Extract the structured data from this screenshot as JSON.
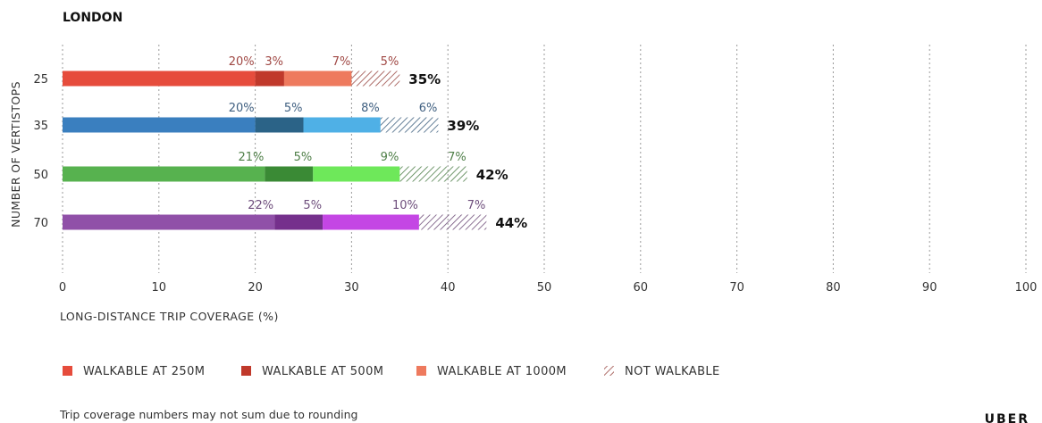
{
  "chart_data": {
    "type": "bar",
    "stacked": true,
    "orientation": "horizontal",
    "title": "LONDON",
    "xlabel": "LONG-DISTANCE TRIP COVERAGE (%)",
    "ylabel": "NUMBER OF VERTISTOPS",
    "xlim": [
      0,
      100
    ],
    "x_ticks": [
      "0",
      "10",
      "20",
      "30",
      "40",
      "50",
      "60",
      "70",
      "80",
      "90",
      "100"
    ],
    "grid": "vertical dotted",
    "categories": [
      "25",
      "35",
      "50",
      "70"
    ],
    "series": [
      {
        "name": "WALKABLE AT 250M",
        "values": [
          20,
          20,
          21,
          22
        ],
        "labels": [
          "20%",
          "20%",
          "21%",
          "22%"
        ]
      },
      {
        "name": "WALKABLE AT 500M",
        "values": [
          3,
          5,
          5,
          5
        ],
        "labels": [
          "3%",
          "5%",
          "5%",
          "5%"
        ]
      },
      {
        "name": "WALKABLE AT 1000M",
        "values": [
          7,
          8,
          9,
          10
        ],
        "labels": [
          "7%",
          "8%",
          "9%",
          "10%"
        ]
      },
      {
        "name": "NOT WALKABLE",
        "values": [
          5,
          6,
          7,
          7
        ],
        "labels": [
          "5%",
          "6%",
          "7%",
          "7%"
        ],
        "pattern": "hatched"
      }
    ],
    "totals": [
      "35%",
      "39%",
      "42%",
      "44%"
    ],
    "row_colors": [
      {
        "c250": "#e64c3c",
        "c500": "#c0392b",
        "c1000": "#ee7a5e",
        "hatch": "#9a4a44",
        "label": "#a04844"
      },
      {
        "c250": "#3a7fbf",
        "c500": "#2b6387",
        "c1000": "#4fb0e6",
        "hatch": "#3d5f7e",
        "label": "#3f5f80"
      },
      {
        "c250": "#57b24f",
        "c500": "#3a8a35",
        "c1000": "#6ee85a",
        "hatch": "#4f7f4a",
        "label": "#4f7f48"
      },
      {
        "c250": "#9050a8",
        "c500": "#75308c",
        "c1000": "#c446e4",
        "hatch": "#6e4d78",
        "label": "#6e4e7c"
      }
    ],
    "legend_colors": [
      "#e64c3c",
      "#c0392b",
      "#ee7a5e",
      "#9a4a44"
    ],
    "legend_position": "bottom-left"
  },
  "footnote": "Trip coverage numbers may not sum due to rounding",
  "logo": "UBER"
}
